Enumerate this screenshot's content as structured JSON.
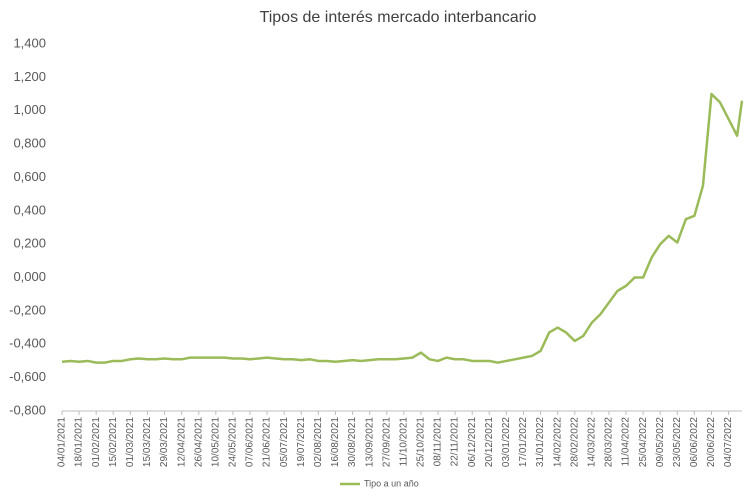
{
  "chart_data": {
    "type": "line",
    "title": "Tipos de interés mercado interbancario",
    "x": [
      "04/01/2021",
      "11/01/2021",
      "18/01/2021",
      "25/01/2021",
      "01/02/2021",
      "08/02/2021",
      "15/02/2021",
      "22/02/2021",
      "01/03/2021",
      "08/03/2021",
      "15/03/2021",
      "22/03/2021",
      "29/03/2021",
      "05/04/2021",
      "12/04/2021",
      "19/04/2021",
      "26/04/2021",
      "03/05/2021",
      "10/05/2021",
      "17/05/2021",
      "24/05/2021",
      "31/05/2021",
      "07/06/2021",
      "14/06/2021",
      "21/06/2021",
      "28/06/2021",
      "05/07/2021",
      "12/07/2021",
      "19/07/2021",
      "26/07/2021",
      "02/08/2021",
      "09/08/2021",
      "16/08/2021",
      "23/08/2021",
      "30/08/2021",
      "06/09/2021",
      "13/09/2021",
      "20/09/2021",
      "27/09/2021",
      "04/10/2021",
      "11/10/2021",
      "18/10/2021",
      "25/10/2021",
      "01/11/2021",
      "08/11/2021",
      "15/11/2021",
      "22/11/2021",
      "29/11/2021",
      "06/12/2021",
      "13/12/2021",
      "20/12/2021",
      "27/12/2021",
      "03/01/2022",
      "10/01/2022",
      "17/01/2022",
      "24/01/2022",
      "31/01/2022",
      "07/02/2022",
      "14/02/2022",
      "21/02/2022",
      "28/02/2022",
      "07/03/2022",
      "14/03/2022",
      "21/03/2022",
      "28/03/2022",
      "04/04/2022",
      "11/04/2022",
      "18/04/2022",
      "25/04/2022",
      "02/05/2022",
      "09/05/2022",
      "16/05/2022",
      "23/05/2022",
      "30/05/2022",
      "06/06/2022",
      "13/06/2022",
      "20/06/2022",
      "27/06/2022",
      "04/07/2022",
      "11/07/2022",
      "15/07/2022"
    ],
    "series": [
      {
        "name": "Tipo a un año",
        "color": "#9bbb59",
        "values": [
          -0.505,
          -0.5,
          -0.505,
          -0.5,
          -0.51,
          -0.51,
          -0.5,
          -0.5,
          -0.49,
          -0.485,
          -0.49,
          -0.49,
          -0.485,
          -0.49,
          -0.49,
          -0.48,
          -0.48,
          -0.48,
          -0.48,
          -0.48,
          -0.485,
          -0.485,
          -0.49,
          -0.485,
          -0.48,
          -0.485,
          -0.49,
          -0.49,
          -0.495,
          -0.49,
          -0.5,
          -0.5,
          -0.505,
          -0.5,
          -0.495,
          -0.5,
          -0.495,
          -0.49,
          -0.49,
          -0.49,
          -0.485,
          -0.48,
          -0.45,
          -0.49,
          -0.5,
          -0.48,
          -0.49,
          -0.49,
          -0.5,
          -0.5,
          -0.5,
          -0.51,
          -0.5,
          -0.49,
          -0.48,
          -0.47,
          -0.44,
          -0.33,
          -0.3,
          -0.33,
          -0.38,
          -0.35,
          -0.27,
          -0.22,
          -0.15,
          -0.08,
          -0.05,
          0.0,
          0.0,
          0.12,
          0.2,
          0.25,
          0.21,
          0.35,
          0.37,
          0.55,
          1.1,
          1.05,
          0.95,
          0.85,
          1.06
        ]
      }
    ],
    "xlim": [
      "04/01/2021",
      "15/07/2022"
    ],
    "xticks": [
      "04/01/2021",
      "18/01/2021",
      "01/02/2021",
      "15/02/2021",
      "01/03/2021",
      "15/03/2021",
      "29/03/2021",
      "12/04/2021",
      "26/04/2021",
      "10/05/2021",
      "24/05/2021",
      "07/06/2021",
      "21/06/2021",
      "05/07/2021",
      "19/07/2021",
      "02/08/2021",
      "16/08/2021",
      "30/08/2021",
      "13/09/2021",
      "27/09/2021",
      "11/10/2021",
      "25/10/2021",
      "08/11/2021",
      "22/11/2021",
      "06/12/2021",
      "20/12/2021",
      "03/01/2022",
      "17/01/2022",
      "31/01/2022",
      "14/02/2022",
      "28/02/2022",
      "14/03/2022",
      "28/03/2022",
      "11/04/2022",
      "25/04/2022",
      "09/05/2022",
      "23/05/2022",
      "06/06/2022",
      "20/06/2022",
      "04/07/2022"
    ],
    "ylim": [
      -0.8,
      1.4
    ],
    "yticks": [
      {
        "value": 1.4,
        "label": "1,400"
      },
      {
        "value": 1.2,
        "label": "1,200"
      },
      {
        "value": 1.0,
        "label": "1,000"
      },
      {
        "value": 0.8,
        "label": "0,800"
      },
      {
        "value": 0.6,
        "label": "0,600"
      },
      {
        "value": 0.4,
        "label": "0,400"
      },
      {
        "value": 0.2,
        "label": "0,200"
      },
      {
        "value": 0.0,
        "label": "0,000"
      },
      {
        "value": -0.2,
        "label": "-0,200"
      },
      {
        "value": -0.4,
        "label": "-0,400"
      },
      {
        "value": -0.6,
        "label": "-0,600"
      },
      {
        "value": -0.8,
        "label": "-0,800"
      }
    ],
    "legend": "bottom",
    "grid": false
  }
}
